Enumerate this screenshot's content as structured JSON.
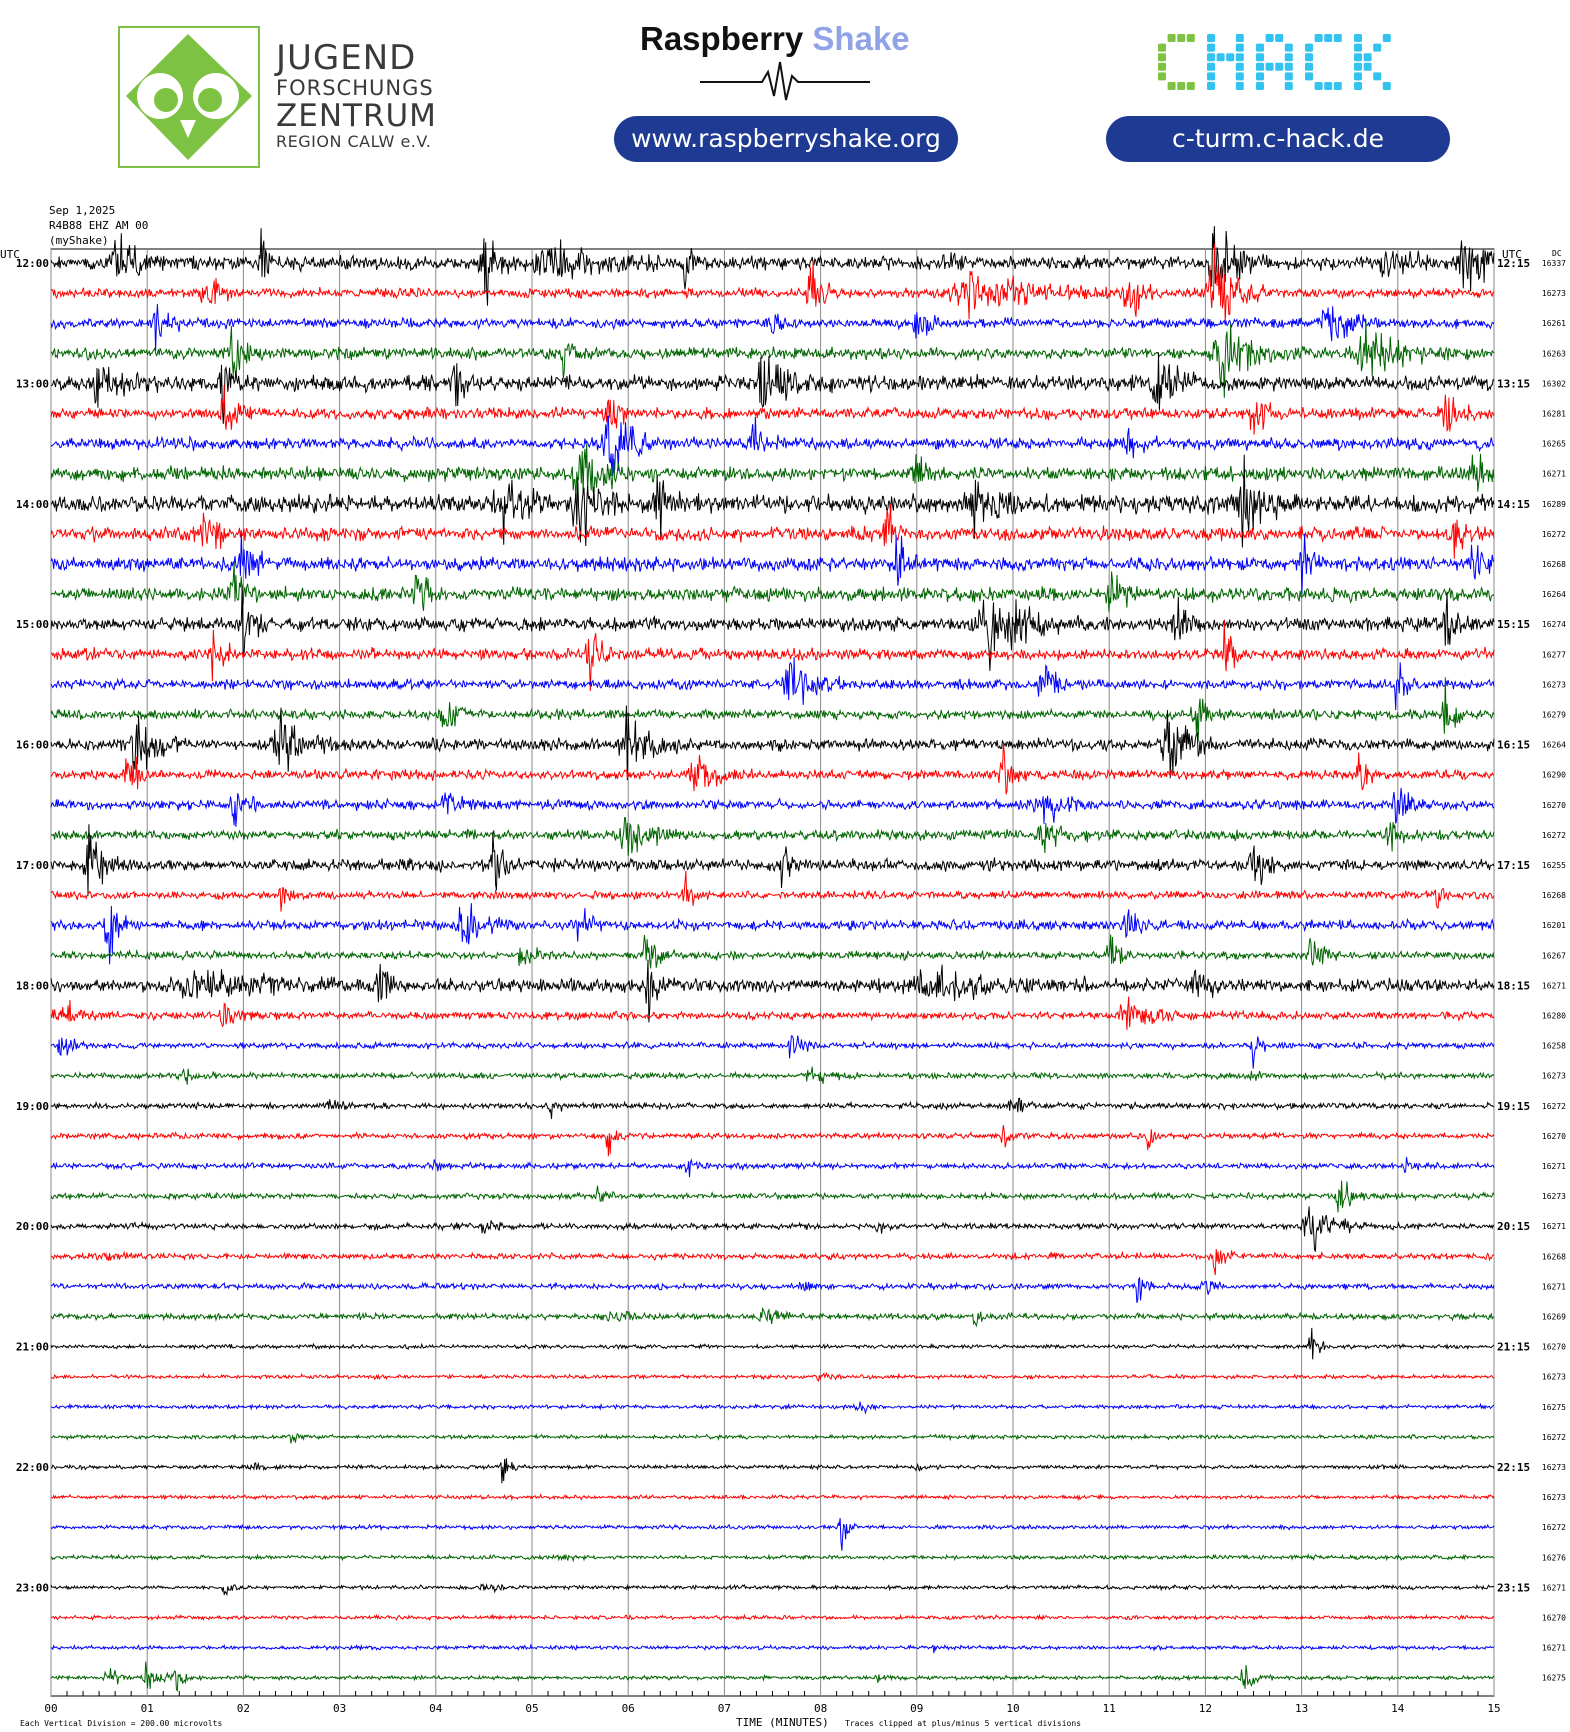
{
  "header": {
    "jfz": {
      "line1": "JUGEND",
      "line2": "FORSCHUNGS",
      "line3": "ZENTRUM",
      "line4": "REGION CALW e.V."
    },
    "raspberry_shake": {
      "word1": "Raspberry",
      "word2": "Shake",
      "url": "www.raspberryshake.org"
    },
    "chack": {
      "logo_text": "CHACK",
      "url": "c-turm.c-hack.de"
    }
  },
  "colors": {
    "trace_cycle": [
      "#000000",
      "#ff0000",
      "#0000ff",
      "#006400"
    ],
    "pill_bg": "#1f3a93",
    "owl_green": "#7dc242",
    "chack_green": "#7dc242",
    "chack_blue": "#33c3f0"
  },
  "chart_data": {
    "type": "line",
    "title": [
      "Sep 1,2025",
      "R4B88 EHZ AM 00",
      "(myShake)"
    ],
    "left_axis_label": "UTC",
    "right_axis_label": "UTC",
    "dc_label": "DC",
    "xlabel": "TIME (MINUTES)",
    "x_ticks": [
      "00",
      "01",
      "02",
      "03",
      "04",
      "05",
      "06",
      "07",
      "08",
      "09",
      "10",
      "11",
      "12",
      "13",
      "14",
      "15"
    ],
    "xlim": [
      0,
      15
    ],
    "left_hour_labels": [
      "12:00",
      "13:00",
      "14:00",
      "15:00",
      "16:00",
      "17:00",
      "18:00",
      "19:00",
      "20:00",
      "21:00",
      "22:00",
      "23:00"
    ],
    "right_hour_labels": [
      "12:15",
      "13:15",
      "14:15",
      "15:15",
      "16:15",
      "17:15",
      "18:15",
      "19:15",
      "20:15",
      "21:15",
      "22:15",
      "23:15"
    ],
    "rows_per_hour": 4,
    "dc_values": [
      16337,
      16273,
      16261,
      16263,
      16302,
      16281,
      16265,
      16271,
      16289,
      16272,
      16268,
      16264,
      16274,
      16277,
      16273,
      16279,
      16264,
      16290,
      16270,
      16272,
      16255,
      16268,
      16201,
      16267,
      16271,
      16280,
      16258,
      16273,
      16272,
      16270,
      16271,
      16273,
      16271,
      16268,
      16271,
      16269,
      16270,
      16273,
      16275,
      16272,
      16273,
      16273,
      16272,
      16276,
      16271,
      16270,
      16271,
      16275
    ],
    "footer_left": "Each Vertical Division = 200.00 microvolts",
    "footer_right": "Traces clipped at plus/minus 5 vertical divisions",
    "series": [
      {
        "noise": 7,
        "events": [
          [
            0.7,
            40,
            0.08
          ],
          [
            2.2,
            55,
            0.03
          ],
          [
            4.5,
            45,
            0.05
          ],
          [
            5.2,
            20,
            0.2
          ],
          [
            6.6,
            25,
            0.03
          ],
          [
            9.3,
            15,
            0.05
          ],
          [
            12.1,
            40,
            0.1
          ],
          [
            13.9,
            30,
            0.1
          ],
          [
            14.7,
            35,
            0.1
          ]
        ]
      },
      {
        "noise": 5,
        "events": [
          [
            1.6,
            30,
            0.05
          ],
          [
            7.9,
            35,
            0.05
          ],
          [
            9.6,
            25,
            0.25
          ],
          [
            11.2,
            35,
            0.05
          ],
          [
            12.1,
            45,
            0.1
          ]
        ]
      },
      {
        "noise": 5,
        "events": [
          [
            1.1,
            30,
            0.05
          ],
          [
            7.5,
            20,
            0.05
          ],
          [
            9.0,
            20,
            0.05
          ],
          [
            13.3,
            25,
            0.1
          ]
        ]
      },
      {
        "noise": 6,
        "events": [
          [
            1.9,
            30,
            0.05
          ],
          [
            5.3,
            25,
            0.03
          ],
          [
            12.2,
            35,
            0.15
          ],
          [
            13.7,
            30,
            0.15
          ]
        ]
      },
      {
        "noise": 8,
        "events": [
          [
            0.5,
            35,
            0.08
          ],
          [
            1.8,
            40,
            0.05
          ],
          [
            4.2,
            25,
            0.05
          ],
          [
            7.4,
            40,
            0.1
          ],
          [
            11.5,
            30,
            0.1
          ]
        ]
      },
      {
        "noise": 6,
        "events": [
          [
            1.8,
            30,
            0.05
          ],
          [
            5.8,
            25,
            0.05
          ],
          [
            12.5,
            30,
            0.05
          ],
          [
            14.5,
            30,
            0.05
          ]
        ]
      },
      {
        "noise": 6,
        "events": [
          [
            5.8,
            45,
            0.1
          ],
          [
            7.3,
            25,
            0.05
          ],
          [
            11.2,
            25,
            0.05
          ]
        ]
      },
      {
        "noise": 7,
        "events": [
          [
            5.5,
            40,
            0.1
          ],
          [
            9.0,
            25,
            0.05
          ],
          [
            14.8,
            30,
            0.05
          ]
        ]
      },
      {
        "noise": 9,
        "events": [
          [
            4.7,
            40,
            0.1
          ],
          [
            5.5,
            45,
            0.1
          ],
          [
            6.3,
            30,
            0.05
          ],
          [
            9.6,
            30,
            0.1
          ],
          [
            12.4,
            35,
            0.1
          ]
        ]
      },
      {
        "noise": 7,
        "events": [
          [
            1.6,
            30,
            0.05
          ],
          [
            8.7,
            30,
            0.05
          ],
          [
            14.6,
            35,
            0.05
          ]
        ]
      },
      {
        "noise": 7,
        "events": [
          [
            2.0,
            40,
            0.05
          ],
          [
            8.8,
            35,
            0.05
          ],
          [
            13.0,
            35,
            0.05
          ],
          [
            14.8,
            30,
            0.05
          ]
        ]
      },
      {
        "noise": 7,
        "events": [
          [
            1.9,
            40,
            0.05
          ],
          [
            3.8,
            35,
            0.05
          ],
          [
            11.0,
            30,
            0.05
          ]
        ]
      },
      {
        "noise": 7,
        "events": [
          [
            2.0,
            35,
            0.05
          ],
          [
            9.8,
            35,
            0.2
          ],
          [
            11.7,
            30,
            0.05
          ],
          [
            14.5,
            25,
            0.05
          ]
        ]
      },
      {
        "noise": 6,
        "events": [
          [
            1.7,
            30,
            0.05
          ],
          [
            5.6,
            35,
            0.05
          ],
          [
            12.2,
            35,
            0.05
          ]
        ]
      },
      {
        "noise": 5,
        "events": [
          [
            7.7,
            35,
            0.1
          ],
          [
            10.3,
            30,
            0.05
          ],
          [
            14.0,
            25,
            0.05
          ]
        ]
      },
      {
        "noise": 5,
        "events": [
          [
            4.1,
            30,
            0.05
          ],
          [
            11.9,
            30,
            0.05
          ],
          [
            14.5,
            30,
            0.05
          ]
        ]
      },
      {
        "noise": 6,
        "events": [
          [
            0.9,
            35,
            0.1
          ],
          [
            2.4,
            35,
            0.1
          ],
          [
            6.0,
            35,
            0.1
          ],
          [
            11.6,
            35,
            0.1
          ]
        ]
      },
      {
        "noise": 5,
        "events": [
          [
            0.8,
            25,
            0.05
          ],
          [
            6.7,
            25,
            0.1
          ],
          [
            9.9,
            30,
            0.05
          ],
          [
            13.6,
            30,
            0.05
          ]
        ]
      },
      {
        "noise": 5,
        "events": [
          [
            1.9,
            25,
            0.05
          ],
          [
            4.1,
            25,
            0.05
          ],
          [
            10.3,
            20,
            0.1
          ],
          [
            14.0,
            25,
            0.05
          ]
        ]
      },
      {
        "noise": 5,
        "events": [
          [
            6.0,
            30,
            0.1
          ],
          [
            10.3,
            20,
            0.1
          ],
          [
            13.9,
            25,
            0.05
          ]
        ]
      },
      {
        "noise": 6,
        "events": [
          [
            0.4,
            30,
            0.08
          ],
          [
            4.6,
            30,
            0.05
          ],
          [
            7.6,
            30,
            0.03
          ],
          [
            12.5,
            30,
            0.05
          ]
        ]
      },
      {
        "noise": 4,
        "events": [
          [
            2.4,
            25,
            0.03
          ],
          [
            6.6,
            25,
            0.03
          ],
          [
            14.4,
            20,
            0.03
          ]
        ]
      },
      {
        "noise": 5,
        "events": [
          [
            0.6,
            35,
            0.05
          ],
          [
            4.3,
            25,
            0.1
          ],
          [
            5.5,
            25,
            0.05
          ],
          [
            11.2,
            20,
            0.05
          ]
        ]
      },
      {
        "noise": 4,
        "events": [
          [
            4.9,
            20,
            0.05
          ],
          [
            6.2,
            30,
            0.05
          ],
          [
            11.0,
            25,
            0.05
          ],
          [
            13.1,
            25,
            0.05
          ]
        ]
      },
      {
        "noise": 7,
        "events": [
          [
            1.5,
            15,
            0.3
          ],
          [
            3.4,
            30,
            0.05
          ],
          [
            6.2,
            35,
            0.05
          ],
          [
            9.2,
            12,
            0.3
          ],
          [
            11.9,
            25,
            0.05
          ]
        ]
      },
      {
        "noise": 4,
        "events": [
          [
            0.1,
            15,
            0.1
          ],
          [
            1.8,
            25,
            0.05
          ],
          [
            11.2,
            20,
            0.1
          ]
        ]
      },
      {
        "noise": 3,
        "events": [
          [
            0.1,
            25,
            0.05
          ],
          [
            7.7,
            20,
            0.05
          ],
          [
            12.5,
            20,
            0.03
          ]
        ]
      },
      {
        "noise": 3,
        "events": [
          [
            1.4,
            6,
            0.1
          ],
          [
            7.9,
            8,
            0.1
          ],
          [
            12.5,
            10,
            0.03
          ]
        ]
      },
      {
        "noise": 3,
        "events": [
          [
            2.9,
            8,
            0.05
          ],
          [
            5.2,
            8,
            0.05
          ],
          [
            10.0,
            10,
            0.05
          ]
        ]
      },
      {
        "noise": 3,
        "events": [
          [
            5.8,
            25,
            0.03
          ],
          [
            9.9,
            25,
            0.03
          ],
          [
            11.4,
            15,
            0.03
          ]
        ]
      },
      {
        "noise": 3,
        "events": [
          [
            4.0,
            6,
            0.05
          ],
          [
            6.6,
            12,
            0.05
          ],
          [
            14.1,
            8,
            0.05
          ]
        ]
      },
      {
        "noise": 3,
        "events": [
          [
            5.7,
            20,
            0.03
          ],
          [
            13.4,
            25,
            0.05
          ]
        ]
      },
      {
        "noise": 3,
        "events": [
          [
            4.5,
            20,
            0.03
          ],
          [
            8.6,
            10,
            0.03
          ],
          [
            13.1,
            30,
            0.1
          ]
        ]
      },
      {
        "noise": 3,
        "events": [
          [
            0.6,
            5,
            0.1
          ],
          [
            10.4,
            8,
            0.03
          ],
          [
            12.1,
            20,
            0.05
          ]
        ]
      },
      {
        "noise": 3,
        "events": [
          [
            7.8,
            6,
            0.05
          ],
          [
            11.3,
            15,
            0.05
          ],
          [
            12.0,
            15,
            0.05
          ]
        ]
      },
      {
        "noise": 3,
        "events": [
          [
            5.8,
            8,
            0.1
          ],
          [
            7.4,
            15,
            0.05
          ],
          [
            9.6,
            15,
            0.03
          ]
        ]
      },
      {
        "noise": 2,
        "events": [
          [
            13.1,
            30,
            0.03
          ]
        ]
      },
      {
        "noise": 2,
        "events": [
          [
            8.0,
            4,
            0.05
          ]
        ]
      },
      {
        "noise": 2,
        "events": [
          [
            8.4,
            6,
            0.05
          ]
        ]
      },
      {
        "noise": 2,
        "events": [
          [
            2.5,
            8,
            0.03
          ]
        ]
      },
      {
        "noise": 2,
        "events": [
          [
            2.1,
            4,
            0.05
          ],
          [
            4.7,
            25,
            0.03
          ],
          [
            9.0,
            4,
            0.05
          ]
        ]
      },
      {
        "noise": 2,
        "events": []
      },
      {
        "noise": 2,
        "events": [
          [
            8.2,
            30,
            0.03
          ]
        ]
      },
      {
        "noise": 2,
        "events": [
          [
            5.3,
            6,
            0.05
          ]
        ]
      },
      {
        "noise": 2,
        "events": [
          [
            1.8,
            15,
            0.03
          ],
          [
            4.5,
            5,
            0.05
          ]
        ]
      },
      {
        "noise": 2,
        "events": []
      },
      {
        "noise": 2,
        "events": [
          [
            9.2,
            4,
            0.05
          ]
        ]
      },
      {
        "noise": 2,
        "events": [
          [
            0.6,
            12,
            0.05
          ],
          [
            1.0,
            18,
            0.05
          ],
          [
            1.3,
            15,
            0.05
          ],
          [
            8.6,
            4,
            0.05
          ],
          [
            12.4,
            20,
            0.05
          ]
        ]
      }
    ]
  }
}
